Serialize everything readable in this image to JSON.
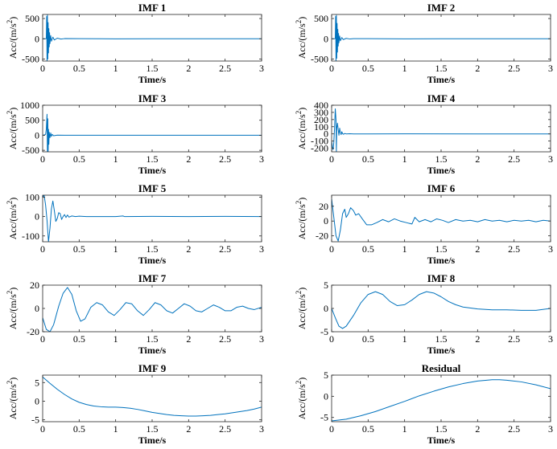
{
  "chart_data": [
    {
      "type": "line",
      "title": "IMF 1",
      "xlabel": "Time/s",
      "ylabel": "Acc/(m/s",
      "ylabel_sup": "2",
      "ylabel_close": ")",
      "xlim": [
        0,
        3
      ],
      "ylim": [
        -550,
        600
      ],
      "xticks": [
        0,
        0.5,
        1,
        1.5,
        2,
        2.5,
        3
      ],
      "xtick_labels": [
        "0",
        "0.5",
        "1",
        "1.5",
        "2",
        "2.5",
        "3"
      ],
      "yticks": [
        -500,
        0,
        500
      ],
      "ytick_labels": [
        "-500",
        "0",
        "500"
      ],
      "series": [
        {
          "name": "IMF 1",
          "color": "#0072BD",
          "x": [
            0.0,
            0.04,
            0.05,
            0.055,
            0.06,
            0.065,
            0.07,
            0.075,
            0.08,
            0.085,
            0.09,
            0.095,
            0.1,
            0.11,
            0.12,
            0.14,
            0.16,
            0.2,
            0.25,
            0.3,
            0.5,
            1.0,
            1.5,
            2.0,
            2.5,
            3.0
          ],
          "y": [
            0,
            0,
            10,
            550,
            -550,
            600,
            -500,
            400,
            -350,
            250,
            -200,
            150,
            -120,
            80,
            -60,
            40,
            -30,
            15,
            -8,
            4,
            2,
            -2,
            1,
            -1,
            1,
            0
          ]
        }
      ]
    },
    {
      "type": "line",
      "title": "IMF 2",
      "xlabel": "Time/s",
      "ylabel": "Acc/(m/s",
      "ylabel_sup": "2",
      "ylabel_close": ")",
      "xlim": [
        0,
        3
      ],
      "ylim": [
        -550,
        600
      ],
      "xticks": [
        0,
        0.5,
        1,
        1.5,
        2,
        2.5,
        3
      ],
      "xtick_labels": [
        "0",
        "0.5",
        "1",
        "1.5",
        "2",
        "2.5",
        "3"
      ],
      "yticks": [
        -500,
        0,
        500
      ],
      "ytick_labels": [
        "-500",
        "0",
        "500"
      ],
      "series": [
        {
          "name": "IMF 2",
          "color": "#0072BD",
          "x": [
            0.0,
            0.04,
            0.05,
            0.055,
            0.06,
            0.065,
            0.07,
            0.075,
            0.08,
            0.085,
            0.09,
            0.095,
            0.1,
            0.11,
            0.12,
            0.14,
            0.16,
            0.2,
            0.25,
            0.3,
            0.5,
            1.0,
            1.5,
            2.0,
            2.5,
            3.0
          ],
          "y": [
            0,
            0,
            10,
            550,
            -550,
            580,
            -480,
            380,
            -330,
            230,
            -180,
            130,
            -100,
            70,
            -50,
            30,
            -20,
            10,
            -6,
            3,
            2,
            -2,
            1,
            -1,
            1,
            0
          ]
        }
      ]
    },
    {
      "type": "line",
      "title": "IMF 3",
      "xlabel": "Time/s",
      "ylabel": "Acc/(m/s",
      "ylabel_sup": "2",
      "ylabel_close": ")",
      "xlim": [
        0,
        3
      ],
      "ylim": [
        -550,
        1000
      ],
      "xticks": [
        0,
        0.5,
        1,
        1.5,
        2,
        2.5,
        3
      ],
      "xtick_labels": [
        "0",
        "0.5",
        "1",
        "1.5",
        "2",
        "2.5",
        "3"
      ],
      "yticks": [
        -500,
        0,
        500,
        1000
      ],
      "ytick_labels": [
        "-500",
        "0",
        "500",
        "1000"
      ],
      "series": [
        {
          "name": "IMF 3",
          "color": "#0072BD",
          "x": [
            0.0,
            0.02,
            0.04,
            0.05,
            0.06,
            0.065,
            0.07,
            0.075,
            0.08,
            0.085,
            0.09,
            0.1,
            0.11,
            0.12,
            0.13,
            0.15,
            0.2,
            0.3,
            0.5,
            1.0,
            2.0,
            3.0
          ],
          "y": [
            0,
            10,
            30,
            200,
            700,
            -550,
            550,
            -550,
            200,
            -300,
            100,
            -80,
            80,
            -40,
            30,
            -15,
            5,
            2,
            0,
            1,
            0,
            0
          ]
        }
      ]
    },
    {
      "type": "line",
      "title": "IMF 4",
      "xlabel": "Time/s",
      "ylabel": "Acc/(m/s",
      "ylabel_sup": "2",
      "ylabel_close": ")",
      "xlim": [
        0,
        3
      ],
      "ylim": [
        -250,
        400
      ],
      "xticks": [
        0,
        0.5,
        1,
        1.5,
        2,
        2.5,
        3
      ],
      "xtick_labels": [
        "0",
        "0.5",
        "1",
        "1.5",
        "2",
        "2.5",
        "3"
      ],
      "yticks": [
        -200,
        -100,
        0,
        100,
        200,
        300,
        400
      ],
      "ytick_labels": [
        "-200",
        "-100",
        "0",
        "100",
        "200",
        "300",
        "400"
      ],
      "series": [
        {
          "name": "IMF 4",
          "color": "#0072BD",
          "x": [
            0.0,
            0.01,
            0.02,
            0.03,
            0.04,
            0.05,
            0.06,
            0.065,
            0.07,
            0.08,
            0.09,
            0.1,
            0.11,
            0.12,
            0.13,
            0.14,
            0.15,
            0.16,
            0.18,
            0.2,
            0.25,
            0.3,
            0.5,
            1.0,
            2.0,
            3.0
          ],
          "y": [
            -100,
            -180,
            -220,
            -120,
            80,
            350,
            200,
            -250,
            80,
            150,
            60,
            -20,
            80,
            20,
            -10,
            30,
            5,
            -5,
            5,
            0,
            2,
            0,
            0,
            1,
            0,
            0
          ]
        }
      ]
    },
    {
      "type": "line",
      "title": "IMF 5",
      "xlabel": "Time/s",
      "ylabel": "Acc/(m/s",
      "ylabel_sup": "2",
      "ylabel_close": ")",
      "xlim": [
        0,
        3
      ],
      "ylim": [
        -130,
        110
      ],
      "xticks": [
        0,
        0.5,
        1,
        1.5,
        2,
        2.5,
        3
      ],
      "xtick_labels": [
        "0",
        "0.5",
        "1",
        "1.5",
        "2",
        "2.5",
        "3"
      ],
      "yticks": [
        -100,
        0,
        100
      ],
      "ytick_labels": [
        "-100",
        "0",
        "100"
      ],
      "series": [
        {
          "name": "IMF 5",
          "color": "#0072BD",
          "x": [
            0.0,
            0.02,
            0.04,
            0.06,
            0.08,
            0.1,
            0.12,
            0.14,
            0.16,
            0.18,
            0.2,
            0.22,
            0.24,
            0.26,
            0.28,
            0.3,
            0.32,
            0.34,
            0.36,
            0.4,
            0.45,
            0.5,
            0.6,
            1.0,
            1.1,
            1.12,
            1.5,
            2.0,
            2.5,
            3.0
          ],
          "y": [
            100,
            110,
            60,
            -20,
            -130,
            -60,
            40,
            80,
            30,
            -25,
            -10,
            20,
            15,
            -15,
            0,
            10,
            -5,
            8,
            -3,
            3,
            0,
            2,
            0,
            0,
            3,
            0,
            1,
            0,
            1,
            0
          ]
        }
      ]
    },
    {
      "type": "line",
      "title": "IMF 6",
      "xlabel": "Time/s",
      "ylabel": "Acc/(m/s",
      "ylabel_sup": "2",
      "ylabel_close": ")",
      "xlim": [
        0,
        3
      ],
      "ylim": [
        -28,
        35
      ],
      "xticks": [
        0,
        0.5,
        1,
        1.5,
        2,
        2.5,
        3
      ],
      "xtick_labels": [
        "0",
        "0.5",
        "1",
        "1.5",
        "2",
        "2.5",
        "3"
      ],
      "yticks": [
        -20,
        0,
        20
      ],
      "ytick_labels": [
        "-20",
        "0",
        "20"
      ],
      "series": [
        {
          "name": "IMF 6",
          "color": "#0072BD",
          "x": [
            0.0,
            0.03,
            0.06,
            0.09,
            0.12,
            0.15,
            0.18,
            0.2,
            0.23,
            0.26,
            0.3,
            0.33,
            0.37,
            0.42,
            0.48,
            0.55,
            0.62,
            0.7,
            0.78,
            0.86,
            0.94,
            1.02,
            1.1,
            1.14,
            1.2,
            1.28,
            1.36,
            1.44,
            1.52,
            1.6,
            1.7,
            1.8,
            1.9,
            2.0,
            2.1,
            2.2,
            2.3,
            2.4,
            2.5,
            2.6,
            2.7,
            2.8,
            2.9,
            3.0
          ],
          "y": [
            30,
            5,
            -20,
            -27,
            -12,
            10,
            16,
            5,
            10,
            18,
            14,
            8,
            10,
            3,
            -5,
            -5,
            -2,
            2,
            -1,
            3,
            0,
            -2,
            -4,
            5,
            -1,
            2,
            -1,
            3,
            1,
            -2,
            2,
            0,
            1,
            -1,
            2,
            0,
            1,
            -1,
            1,
            0,
            1,
            -1,
            1,
            0
          ]
        }
      ]
    },
    {
      "type": "line",
      "title": "IMF 7",
      "xlabel": "Time/s",
      "ylabel": "Acc/(m/s",
      "ylabel_sup": "2",
      "ylabel_close": ")",
      "xlim": [
        0,
        3
      ],
      "ylim": [
        -20,
        20
      ],
      "xticks": [
        0,
        0.5,
        1,
        1.5,
        2,
        2.5,
        3
      ],
      "xtick_labels": [
        "0",
        "0.5",
        "1",
        "1.5",
        "2",
        "2.5",
        "3"
      ],
      "yticks": [
        -20,
        0,
        20
      ],
      "ytick_labels": [
        "-20",
        "0",
        "20"
      ],
      "series": [
        {
          "name": "IMF 7",
          "color": "#0072BD",
          "x": [
            0.0,
            0.05,
            0.1,
            0.15,
            0.22,
            0.28,
            0.34,
            0.4,
            0.46,
            0.52,
            0.58,
            0.66,
            0.74,
            0.82,
            0.9,
            0.98,
            1.06,
            1.14,
            1.22,
            1.3,
            1.38,
            1.46,
            1.54,
            1.62,
            1.7,
            1.78,
            1.86,
            1.94,
            2.02,
            2.1,
            2.18,
            2.26,
            2.34,
            2.42,
            2.5,
            2.58,
            2.66,
            2.74,
            2.82,
            2.9,
            3.0
          ],
          "y": [
            -8,
            -18,
            -20,
            -14,
            2,
            13,
            18,
            12,
            -2,
            -11,
            -9,
            1,
            5,
            3,
            -3,
            -6,
            -1,
            5,
            4,
            -2,
            -6,
            -1,
            5,
            3,
            -2,
            -4,
            0,
            4,
            2,
            -2,
            -3,
            0,
            3,
            1,
            -2,
            -2,
            1,
            2,
            0,
            -1,
            1
          ]
        }
      ]
    },
    {
      "type": "line",
      "title": "IMF 8",
      "xlabel": "Time/s",
      "ylabel": "Acc/(m/s",
      "ylabel_sup": "2",
      "ylabel_close": ")",
      "xlim": [
        0,
        3
      ],
      "ylim": [
        -5,
        5
      ],
      "xticks": [
        0,
        0.5,
        1,
        1.5,
        2,
        2.5,
        3
      ],
      "xtick_labels": [
        "0",
        "0.5",
        "1",
        "1.5",
        "2",
        "2.5",
        "3"
      ],
      "yticks": [
        -5,
        0,
        5
      ],
      "ytick_labels": [
        "-5",
        "0",
        "5"
      ],
      "series": [
        {
          "name": "IMF 8",
          "color": "#0072BD",
          "x": [
            0.0,
            0.05,
            0.1,
            0.15,
            0.2,
            0.3,
            0.4,
            0.5,
            0.6,
            0.7,
            0.8,
            0.9,
            1.0,
            1.1,
            1.2,
            1.3,
            1.4,
            1.5,
            1.6,
            1.7,
            1.8,
            2.0,
            2.2,
            2.4,
            2.6,
            2.8,
            3.0
          ],
          "y": [
            0,
            -2,
            -3.8,
            -4.3,
            -3.8,
            -1.5,
            1.2,
            3.0,
            3.6,
            3.0,
            1.5,
            0.6,
            0.8,
            1.8,
            3.0,
            3.6,
            3.3,
            2.5,
            1.5,
            0.8,
            0.3,
            -0.1,
            -0.3,
            -0.3,
            -0.4,
            -0.4,
            0
          ]
        }
      ]
    },
    {
      "type": "line",
      "title": "IMF 9",
      "xlabel": "Time/s",
      "ylabel": "Acc/(m/s",
      "ylabel_sup": "2",
      "ylabel_close": ")",
      "xlim": [
        0,
        3
      ],
      "ylim": [
        -5.5,
        7
      ],
      "xticks": [
        0,
        0.5,
        1,
        1.5,
        2,
        2.5,
        3
      ],
      "xtick_labels": [
        "0",
        "0.5",
        "1",
        "1.5",
        "2",
        "2.5",
        "3"
      ],
      "yticks": [
        -5,
        0,
        5
      ],
      "ytick_labels": [
        "-5",
        "0",
        "5"
      ],
      "series": [
        {
          "name": "IMF 9",
          "color": "#0072BD",
          "x": [
            0.0,
            0.1,
            0.2,
            0.3,
            0.4,
            0.5,
            0.6,
            0.7,
            0.8,
            0.9,
            1.0,
            1.1,
            1.2,
            1.3,
            1.4,
            1.5,
            1.6,
            1.7,
            1.8,
            1.9,
            2.0,
            2.1,
            2.2,
            2.3,
            2.4,
            2.5,
            2.6,
            2.7,
            2.8,
            2.9,
            3.0
          ],
          "y": [
            6.5,
            4.8,
            3.2,
            1.8,
            0.6,
            -0.3,
            -0.9,
            -1.3,
            -1.5,
            -1.6,
            -1.6,
            -1.7,
            -1.9,
            -2.2,
            -2.6,
            -3.0,
            -3.3,
            -3.6,
            -3.8,
            -3.9,
            -4.0,
            -4.0,
            -3.9,
            -3.8,
            -3.6,
            -3.4,
            -3.1,
            -2.8,
            -2.5,
            -2.1,
            -1.6
          ]
        }
      ]
    },
    {
      "type": "line",
      "title": "Residual",
      "xlabel": "Time/s",
      "ylabel": "Acc/(m/s",
      "ylabel_sup": "2",
      "ylabel_close": ")",
      "xlim": [
        0,
        3
      ],
      "ylim": [
        -6,
        5
      ],
      "xticks": [
        0,
        0.5,
        1,
        1.5,
        2,
        2.5,
        3
      ],
      "xtick_labels": [
        "0",
        "0.5",
        "1",
        "1.5",
        "2",
        "2.5",
        "3"
      ],
      "yticks": [
        -5,
        0,
        5
      ],
      "ytick_labels": [
        "-5",
        "0",
        "5"
      ],
      "series": [
        {
          "name": "Residual",
          "color": "#0072BD",
          "x": [
            0.0,
            0.2,
            0.4,
            0.6,
            0.8,
            1.0,
            1.2,
            1.4,
            1.6,
            1.8,
            2.0,
            2.2,
            2.3,
            2.4,
            2.6,
            2.8,
            3.0
          ],
          "y": [
            -5.8,
            -5.4,
            -4.6,
            -3.6,
            -2.4,
            -1.2,
            0.1,
            1.2,
            2.2,
            3.0,
            3.6,
            3.9,
            3.9,
            3.8,
            3.4,
            2.7,
            1.8
          ]
        }
      ]
    }
  ]
}
